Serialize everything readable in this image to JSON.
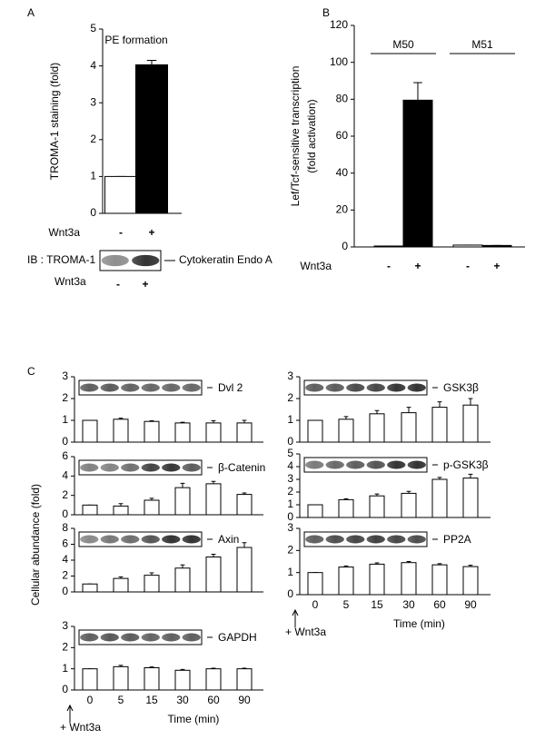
{
  "chart_data": [
    {
      "type": "bar",
      "panel": "A",
      "title": "PE formation",
      "ylabel": "TROMA-1 staining (fold)",
      "xlabel": "Wnt3a",
      "categories": [
        "-",
        "+"
      ],
      "values": [
        1,
        4.03
      ],
      "errors": [
        0,
        0.12
      ],
      "colors": [
        "#ffffff",
        "#000000"
      ],
      "ylim": [
        0,
        5
      ],
      "yticks": [
        0,
        1,
        2,
        3,
        4,
        5
      ],
      "blot": {
        "label": "IB : TROMA-1",
        "band": "Cytokeratin Endo A",
        "xlabel": "Wnt3a",
        "categories": [
          "-",
          "+"
        ]
      }
    },
    {
      "type": "bar",
      "panel": "B",
      "ylabel": [
        "Lef/Tcf-sensitive transcription",
        "(fold  activation)"
      ],
      "xlabel": "Wnt3a",
      "groups": [
        "M50",
        "M51"
      ],
      "categories": [
        "-",
        "+",
        "-",
        "+"
      ],
      "values": [
        0.5,
        79.5,
        1,
        0.8
      ],
      "errors": [
        0,
        9.5,
        0,
        0
      ],
      "colors": [
        "#ffffff",
        "#000000",
        "#ffffff",
        "#000000"
      ],
      "ylim": [
        0,
        120
      ],
      "yticks": [
        0,
        20,
        40,
        60,
        80,
        100,
        120
      ]
    },
    {
      "type": "bar",
      "label": "Dvl 2",
      "color": "#ffffff",
      "values": [
        1,
        1.05,
        0.95,
        0.88,
        0.88,
        0.88
      ],
      "errors": [
        0,
        0.05,
        0.03,
        0.03,
        0.1,
        0.12
      ],
      "ylim": [
        0,
        3
      ],
      "yticks": [
        0,
        1,
        2,
        3
      ]
    },
    {
      "type": "bar",
      "label": "β-Catenin",
      "color": "#ffffff",
      "values": [
        1,
        0.9,
        1.5,
        2.8,
        3.2,
        2.1
      ],
      "errors": [
        0,
        0.25,
        0.2,
        0.45,
        0.25,
        0.15
      ],
      "ylim": [
        0,
        6
      ],
      "yticks": [
        0,
        2,
        4,
        6
      ]
    },
    {
      "type": "bar",
      "label": "Axin",
      "color": "#ffffff",
      "values": [
        1,
        1.7,
        2.1,
        3,
        4.4,
        5.6
      ],
      "errors": [
        0,
        0.2,
        0.3,
        0.4,
        0.35,
        0.6
      ],
      "ylim": [
        0,
        8
      ],
      "yticks": [
        0,
        2,
        4,
        6,
        8
      ]
    },
    {
      "type": "bar",
      "label": "GAPDH",
      "color": "#ffffff",
      "values": [
        1,
        1.1,
        1.05,
        0.93,
        1,
        1
      ],
      "errors": [
        0,
        0.06,
        0.04,
        0.04,
        0.03,
        0.03
      ],
      "ylim": [
        0,
        3
      ],
      "yticks": [
        0,
        1,
        2,
        3
      ],
      "categories": [
        "0",
        "5",
        "15",
        "30",
        "60",
        "90"
      ],
      "xlabel": "Time (min)",
      "annotation": "+ Wnt3a"
    },
    {
      "type": "bar",
      "label": "GSK3β",
      "color": "#ffffff",
      "values": [
        1,
        1.05,
        1.3,
        1.35,
        1.6,
        1.7
      ],
      "errors": [
        0,
        0.12,
        0.15,
        0.25,
        0.25,
        0.3
      ],
      "ylim": [
        0,
        3
      ],
      "yticks": [
        0,
        1,
        2,
        3
      ]
    },
    {
      "type": "bar",
      "label": "p-GSK3β",
      "color": "#ffffff",
      "values": [
        1,
        1.4,
        1.7,
        1.9,
        3,
        3.1
      ],
      "errors": [
        0,
        0.07,
        0.15,
        0.15,
        0.15,
        0.3
      ],
      "ylim": [
        0,
        5
      ],
      "yticks": [
        0,
        1,
        2,
        3,
        4,
        5
      ]
    },
    {
      "type": "bar",
      "label": "PP2A",
      "color": "#ffffff",
      "values": [
        1,
        1.25,
        1.38,
        1.45,
        1.35,
        1.27
      ],
      "errors": [
        0,
        0.05,
        0.06,
        0.05,
        0.05,
        0.06
      ],
      "ylim": [
        0,
        3
      ],
      "yticks": [
        0,
        1,
        2,
        3
      ],
      "categories": [
        "0",
        "5",
        "15",
        "30",
        "60",
        "90"
      ],
      "xlabel": "Time (min)",
      "annotation": "+ Wnt3a"
    }
  ],
  "panel_c": {
    "panel": "C",
    "ylabel": "Cellular abundance  (fold)"
  }
}
